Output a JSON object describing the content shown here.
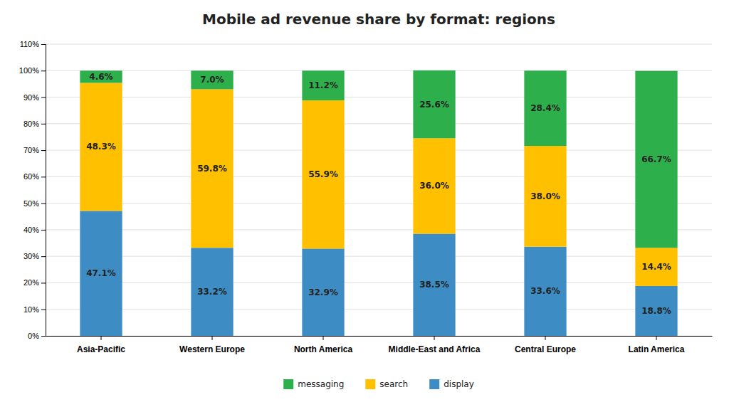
{
  "chart_data": {
    "type": "bar",
    "title": "Mobile ad revenue share by format: regions",
    "categories": [
      "Asia-Pacific",
      "Western Europe",
      "North America",
      "Middle-East and Africa",
      "Central Europe",
      "Latin America"
    ],
    "series": [
      {
        "name": "display",
        "color": "#3d8dc4",
        "values": [
          47.1,
          33.2,
          32.9,
          38.5,
          33.6,
          18.8
        ],
        "value_labels": [
          "47.1%",
          "33.2%",
          "32.9%",
          "38.5%",
          "33.6%",
          "18.8%"
        ]
      },
      {
        "name": "search",
        "color": "#ffc000",
        "values": [
          48.3,
          59.8,
          55.9,
          36.0,
          38.0,
          14.4
        ],
        "value_labels": [
          "48.3%",
          "59.8%",
          "55.9%",
          "36.0%",
          "38.0%",
          "14.4%"
        ]
      },
      {
        "name": "messaging",
        "color": "#2db04b",
        "values": [
          4.6,
          7.0,
          11.2,
          25.6,
          28.4,
          66.7
        ],
        "value_labels": [
          "4.6%",
          "7.0%",
          "11.2%",
          "25.6%",
          "28.4%",
          "66.7%"
        ]
      }
    ],
    "stacked": true,
    "data_labels": true,
    "ylim": [
      0,
      110
    ],
    "yticks": [
      {
        "value": 0,
        "label": "0%"
      },
      {
        "value": 10,
        "label": "10%"
      },
      {
        "value": 20,
        "label": "20%"
      },
      {
        "value": 30,
        "label": "30%"
      },
      {
        "value": 40,
        "label": "40%"
      },
      {
        "value": 50,
        "label": "50%"
      },
      {
        "value": 60,
        "label": "60%"
      },
      {
        "value": 70,
        "label": "70%"
      },
      {
        "value": 80,
        "label": "80%"
      },
      {
        "value": 90,
        "label": "90%"
      },
      {
        "value": 100,
        "label": "100%"
      },
      {
        "value": 110,
        "label": "110%"
      }
    ],
    "grid": true,
    "legend": "bottom"
  }
}
